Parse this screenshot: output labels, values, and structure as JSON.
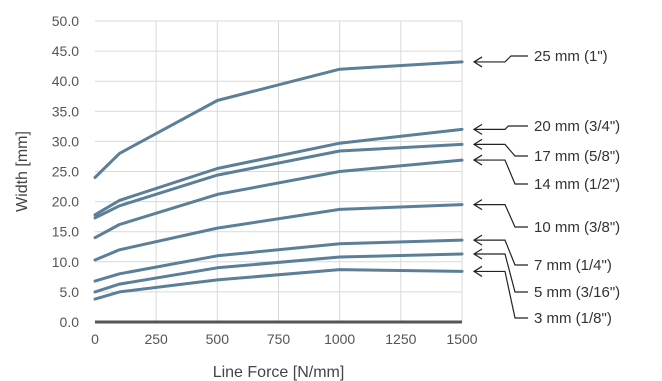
{
  "chart_data": {
    "type": "line",
    "xlabel": "Line Force [N/mm]",
    "ylabel": "Width [mm]",
    "xlim": [
      0,
      1500
    ],
    "ylim": [
      0,
      50
    ],
    "xticks": [
      0,
      250,
      500,
      750,
      1000,
      1250,
      1500
    ],
    "yticks": [
      0,
      5,
      10,
      15,
      20,
      25,
      30,
      35,
      40,
      45,
      50
    ],
    "ytick_labels": [
      "0.0",
      "5.0",
      "10.0",
      "15.0",
      "20.0",
      "25.0",
      "30.0",
      "35.0",
      "40.0",
      "45.0",
      "50.0"
    ],
    "grid": true,
    "legend": "labels at right end of each line with arrows",
    "line_color": "#5b7f98",
    "x": [
      0,
      100,
      500,
      1000,
      1500
    ],
    "series": [
      {
        "name": "25 mm  (1\")",
        "values": [
          24.0,
          28.0,
          36.8,
          42.0,
          43.2
        ]
      },
      {
        "name": "20 mm  (3/4\")",
        "values": [
          17.8,
          20.2,
          25.5,
          29.7,
          32.0
        ]
      },
      {
        "name": "17 mm  (5/8\")",
        "values": [
          17.3,
          19.3,
          24.4,
          28.4,
          29.5
        ]
      },
      {
        "name": "14 mm  (1/2\")",
        "values": [
          14.0,
          16.2,
          21.2,
          25.0,
          26.9
        ]
      },
      {
        "name": "10 mm  (3/8\")",
        "values": [
          10.3,
          12.0,
          15.6,
          18.7,
          19.5
        ]
      },
      {
        "name": "7 mm  (1/4\")",
        "values": [
          6.8,
          8.0,
          11.0,
          13.0,
          13.6
        ]
      },
      {
        "name": "5 mm  (3/16\")",
        "values": [
          5.0,
          6.3,
          9.0,
          10.8,
          11.3
        ]
      },
      {
        "name": "3 mm  (1/8\")",
        "values": [
          3.8,
          5.0,
          7.0,
          8.7,
          8.4
        ]
      }
    ]
  }
}
